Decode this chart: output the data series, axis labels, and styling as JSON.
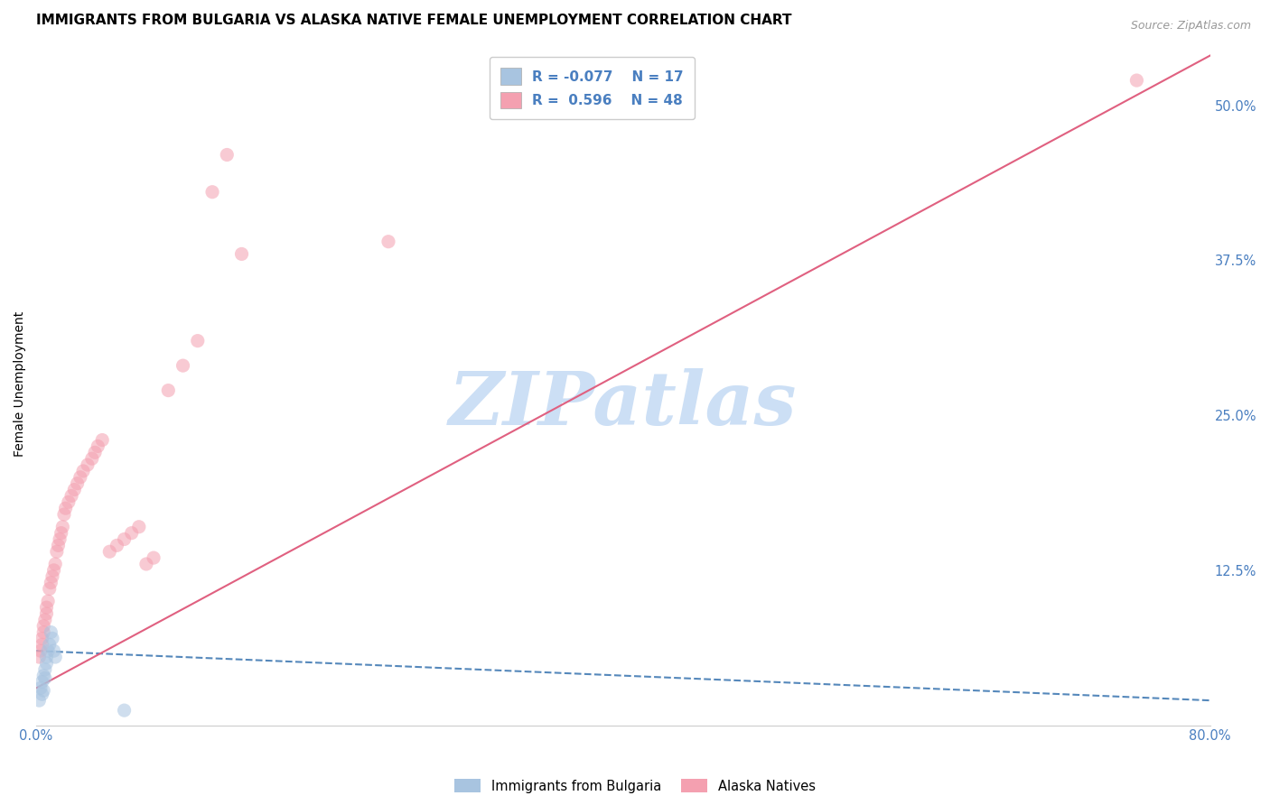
{
  "title": "IMMIGRANTS FROM BULGARIA VS ALASKA NATIVE FEMALE UNEMPLOYMENT CORRELATION CHART",
  "source": "Source: ZipAtlas.com",
  "ylabel": "Female Unemployment",
  "x_min": 0.0,
  "x_max": 0.8,
  "y_min": 0.0,
  "y_max": 0.55,
  "x_ticks": [
    0.0,
    0.2,
    0.4,
    0.6,
    0.8
  ],
  "y_ticks_right": [
    0.0,
    0.125,
    0.25,
    0.375,
    0.5
  ],
  "legend_entries": [
    {
      "label": "Immigrants from Bulgaria",
      "color": "#a8c4e0",
      "R": "-0.077",
      "N": "17"
    },
    {
      "label": "Alaska Natives",
      "color": "#f4a0b0",
      "R": "0.596",
      "N": "48"
    }
  ],
  "watermark": "ZIPatlas",
  "blue_scatter_x": [
    0.002,
    0.003,
    0.004,
    0.004,
    0.005,
    0.005,
    0.006,
    0.006,
    0.007,
    0.007,
    0.008,
    0.009,
    0.01,
    0.011,
    0.012,
    0.013,
    0.06
  ],
  "blue_scatter_y": [
    0.02,
    0.03,
    0.025,
    0.035,
    0.04,
    0.028,
    0.038,
    0.045,
    0.05,
    0.055,
    0.06,
    0.065,
    0.075,
    0.07,
    0.06,
    0.055,
    0.012
  ],
  "pink_scatter_x": [
    0.002,
    0.003,
    0.004,
    0.004,
    0.005,
    0.005,
    0.006,
    0.007,
    0.007,
    0.008,
    0.009,
    0.01,
    0.011,
    0.012,
    0.013,
    0.014,
    0.015,
    0.016,
    0.017,
    0.018,
    0.019,
    0.02,
    0.022,
    0.024,
    0.026,
    0.028,
    0.03,
    0.032,
    0.035,
    0.038,
    0.04,
    0.042,
    0.045,
    0.05,
    0.055,
    0.06,
    0.065,
    0.07,
    0.075,
    0.08,
    0.09,
    0.1,
    0.11,
    0.12,
    0.13,
    0.14,
    0.24,
    0.75
  ],
  "pink_scatter_y": [
    0.055,
    0.06,
    0.07,
    0.065,
    0.075,
    0.08,
    0.085,
    0.09,
    0.095,
    0.1,
    0.11,
    0.115,
    0.12,
    0.125,
    0.13,
    0.14,
    0.145,
    0.15,
    0.155,
    0.16,
    0.17,
    0.175,
    0.18,
    0.185,
    0.19,
    0.195,
    0.2,
    0.205,
    0.21,
    0.215,
    0.22,
    0.225,
    0.23,
    0.14,
    0.145,
    0.15,
    0.155,
    0.16,
    0.13,
    0.135,
    0.27,
    0.29,
    0.31,
    0.43,
    0.46,
    0.38,
    0.39,
    0.52
  ],
  "blue_line_x_start": 0.0,
  "blue_line_x_end": 0.8,
  "blue_line_y_start": 0.06,
  "blue_line_y_end": 0.02,
  "pink_line_x_start": 0.0,
  "pink_line_x_end": 0.8,
  "pink_line_y_start": 0.03,
  "pink_line_y_end": 0.54,
  "scatter_size": 120,
  "scatter_alpha": 0.55,
  "grid_color": "#dddddd",
  "background_color": "#ffffff",
  "title_fontsize": 11,
  "label_fontsize": 10,
  "tick_fontsize": 10.5,
  "watermark_color": "#ccdff5",
  "watermark_fontsize": 60,
  "blue_color": "#a8c4e0",
  "pink_color": "#f4a0b0",
  "blue_line_color": "#5588bb",
  "pink_line_color": "#e06080",
  "legend_R_blue": "-0.077",
  "legend_N_blue": "17",
  "legend_R_pink": "0.596",
  "legend_N_pink": "48"
}
